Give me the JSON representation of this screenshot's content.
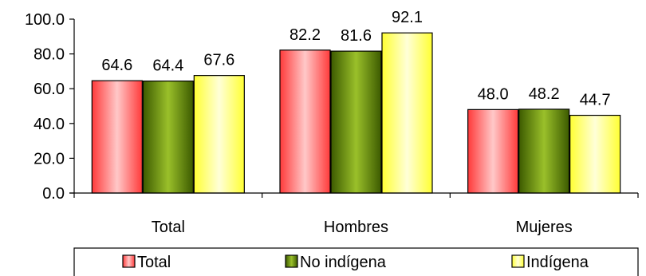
{
  "chart_data": {
    "type": "bar",
    "title": "",
    "xlabel": "",
    "ylabel": "",
    "ylim": [
      0,
      100
    ],
    "y_ticks": [
      "0.0",
      "20.0",
      "40.0",
      "60.0",
      "80.0",
      "100.0"
    ],
    "grid": false,
    "legend_position": "bottom",
    "categories": [
      "Total",
      "Hombres",
      "Mujeres"
    ],
    "series": [
      {
        "name": "Total",
        "values": [
          64.6,
          82.2,
          48.0
        ],
        "labels": [
          "64.6",
          "82.2",
          "48.0"
        ],
        "color": "#ff3a3a",
        "highlight": "#ffc8c8"
      },
      {
        "name": "No indígena",
        "values": [
          64.4,
          81.6,
          48.2
        ],
        "labels": [
          "64.4",
          "81.6",
          "48.2"
        ],
        "color": "#3c5a00",
        "highlight": "#9ac02a"
      },
      {
        "name": "Indígena",
        "values": [
          67.6,
          92.1,
          44.7
        ],
        "labels": [
          "67.6",
          "92.1",
          "44.7"
        ],
        "color": "#ffff33",
        "highlight": "#ffffd8"
      }
    ]
  }
}
